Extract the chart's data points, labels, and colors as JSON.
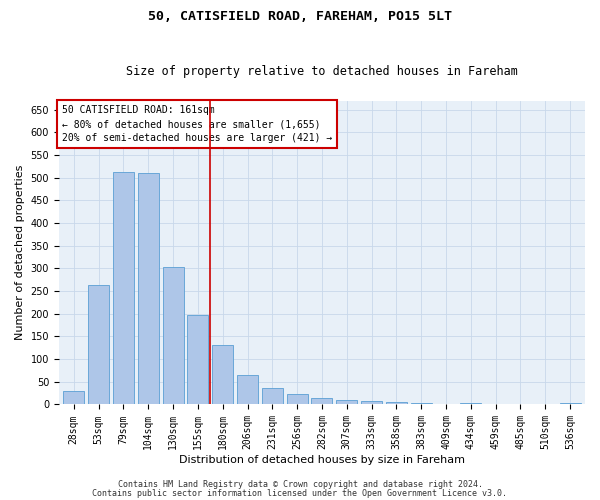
{
  "title1": "50, CATISFIELD ROAD, FAREHAM, PO15 5LT",
  "title2": "Size of property relative to detached houses in Fareham",
  "xlabel": "Distribution of detached houses by size in Fareham",
  "ylabel": "Number of detached properties",
  "categories": [
    "28sqm",
    "53sqm",
    "79sqm",
    "104sqm",
    "130sqm",
    "155sqm",
    "180sqm",
    "206sqm",
    "231sqm",
    "256sqm",
    "282sqm",
    "307sqm",
    "333sqm",
    "358sqm",
    "383sqm",
    "409sqm",
    "434sqm",
    "459sqm",
    "485sqm",
    "510sqm",
    "536sqm"
  ],
  "values": [
    30,
    263,
    512,
    511,
    302,
    197,
    131,
    65,
    37,
    22,
    15,
    9,
    7,
    5,
    4,
    1,
    4,
    1,
    1,
    0,
    4
  ],
  "bar_color": "#aec6e8",
  "bar_edge_color": "#5a9fd4",
  "vline_x": 5.5,
  "vline_color": "#cc0000",
  "annotation_title": "50 CATISFIELD ROAD: 161sqm",
  "annotation_line1": "← 80% of detached houses are smaller (1,655)",
  "annotation_line2": "20% of semi-detached houses are larger (421) →",
  "annotation_box_color": "#ffffff",
  "annotation_box_edge": "#cc0000",
  "ylim": [
    0,
    670
  ],
  "yticks": [
    0,
    50,
    100,
    150,
    200,
    250,
    300,
    350,
    400,
    450,
    500,
    550,
    600,
    650
  ],
  "footer1": "Contains HM Land Registry data © Crown copyright and database right 2024.",
  "footer2": "Contains public sector information licensed under the Open Government Licence v3.0.",
  "background_color": "#ffffff",
  "plot_bg_color": "#e8f0f8",
  "grid_color": "#c8d8ea",
  "title1_fontsize": 9.5,
  "title2_fontsize": 8.5,
  "xlabel_fontsize": 8,
  "ylabel_fontsize": 8,
  "tick_fontsize": 7,
  "annotation_fontsize": 7,
  "footer_fontsize": 6
}
